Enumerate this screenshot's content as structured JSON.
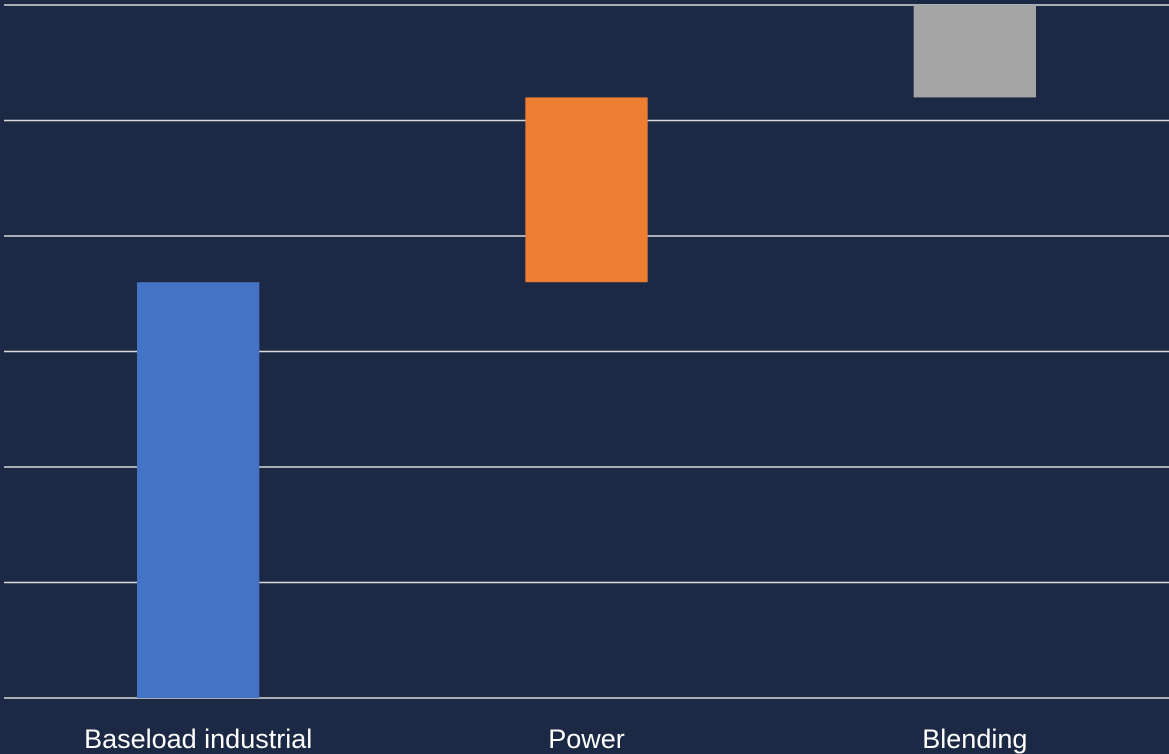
{
  "chart_data": {
    "type": "bar",
    "subtype": "waterfall",
    "categories": [
      "Baseload industrial",
      "Power",
      "Blending"
    ],
    "series": [
      {
        "values": [
          18,
          8,
          4
        ],
        "bases": [
          0,
          18,
          26
        ],
        "colors": [
          "#4472c4",
          "#ed7d31",
          "#a5a5a5"
        ]
      }
    ],
    "ylim": [
      0,
      30
    ],
    "y_gridline_step": 5,
    "grid": true,
    "legend": "none",
    "background": "#1c2944",
    "gridline_color": "#d9d9d9",
    "label_color": "#ffffff"
  }
}
